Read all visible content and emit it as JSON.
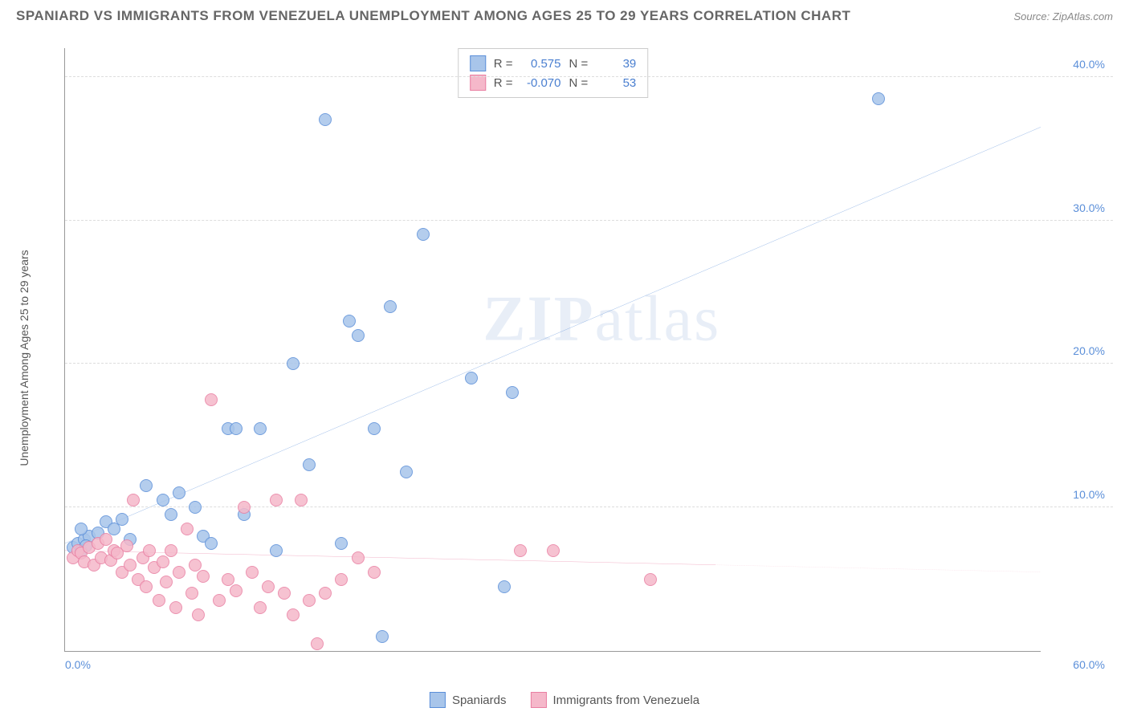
{
  "header": {
    "title": "SPANIARD VS IMMIGRANTS FROM VENEZUELA UNEMPLOYMENT AMONG AGES 25 TO 29 YEARS CORRELATION CHART",
    "source": "Source: ZipAtlas.com"
  },
  "chart": {
    "type": "scatter",
    "ylabel": "Unemployment Among Ages 25 to 29 years",
    "watermark": "ZIPatlas",
    "background_color": "#ffffff",
    "grid_color": "#dddddd",
    "axis_color": "#999999",
    "tick_label_color": "#5b8fd9",
    "xlim": [
      0,
      60
    ],
    "ylim": [
      0,
      42
    ],
    "xticks": [
      {
        "value": 0,
        "label": "0.0%"
      },
      {
        "value": 60,
        "label": "60.0%"
      }
    ],
    "yticks": [
      {
        "value": 10,
        "label": "10.0%"
      },
      {
        "value": 20,
        "label": "20.0%"
      },
      {
        "value": 30,
        "label": "30.0%"
      },
      {
        "value": 40,
        "label": "40.0%"
      }
    ],
    "marker_radius": 8,
    "marker_stroke_width": 1.5,
    "marker_fill_opacity": 0.35,
    "series": [
      {
        "name": "Spaniards",
        "color": "#5b8fd9",
        "fill_color": "#a8c5ea",
        "R": "0.575",
        "N": "39",
        "trend": {
          "x1": 0,
          "y1": 7.5,
          "x2": 60,
          "y2": 36.5,
          "width": 2,
          "dash_from_x": 60
        },
        "points": [
          [
            0.5,
            7.2
          ],
          [
            0.8,
            7.5
          ],
          [
            1.0,
            7.0
          ],
          [
            1.2,
            7.8
          ],
          [
            1.5,
            8.0
          ],
          [
            1.0,
            8.5
          ],
          [
            1.3,
            7.3
          ],
          [
            2.0,
            8.2
          ],
          [
            2.5,
            9.0
          ],
          [
            3.0,
            8.5
          ],
          [
            3.5,
            9.2
          ],
          [
            4.0,
            7.8
          ],
          [
            5.0,
            11.5
          ],
          [
            6.0,
            10.5
          ],
          [
            6.5,
            9.5
          ],
          [
            7.0,
            11.0
          ],
          [
            8.0,
            10.0
          ],
          [
            8.5,
            8.0
          ],
          [
            9.0,
            7.5
          ],
          [
            10.0,
            15.5
          ],
          [
            10.5,
            15.5
          ],
          [
            11.0,
            9.5
          ],
          [
            12.0,
            15.5
          ],
          [
            13.0,
            7.0
          ],
          [
            14.0,
            20.0
          ],
          [
            15.0,
            13.0
          ],
          [
            16.0,
            37.0
          ],
          [
            17.0,
            7.5
          ],
          [
            17.5,
            23.0
          ],
          [
            18.0,
            22.0
          ],
          [
            19.0,
            15.5
          ],
          [
            19.5,
            1.0
          ],
          [
            20.0,
            24.0
          ],
          [
            21.0,
            12.5
          ],
          [
            22.0,
            29.0
          ],
          [
            25.0,
            19.0
          ],
          [
            27.0,
            4.5
          ],
          [
            27.5,
            18.0
          ],
          [
            50.0,
            38.5
          ]
        ]
      },
      {
        "name": "Immigrants from Venezuela",
        "color": "#e97fa2",
        "fill_color": "#f5b8ca",
        "R": "-0.070",
        "N": "53",
        "trend": {
          "x1": 0,
          "y1": 7.0,
          "x2": 60,
          "y2": 5.5,
          "width": 2,
          "dash_from_x": 40
        },
        "points": [
          [
            0.5,
            6.5
          ],
          [
            0.8,
            7.0
          ],
          [
            1.0,
            6.8
          ],
          [
            1.2,
            6.2
          ],
          [
            1.5,
            7.2
          ],
          [
            1.8,
            6.0
          ],
          [
            2.0,
            7.5
          ],
          [
            2.2,
            6.5
          ],
          [
            2.5,
            7.8
          ],
          [
            2.8,
            6.3
          ],
          [
            3.0,
            7.0
          ],
          [
            3.2,
            6.8
          ],
          [
            3.5,
            5.5
          ],
          [
            3.8,
            7.3
          ],
          [
            4.0,
            6.0
          ],
          [
            4.2,
            10.5
          ],
          [
            4.5,
            5.0
          ],
          [
            4.8,
            6.5
          ],
          [
            5.0,
            4.5
          ],
          [
            5.2,
            7.0
          ],
          [
            5.5,
            5.8
          ],
          [
            5.8,
            3.5
          ],
          [
            6.0,
            6.2
          ],
          [
            6.2,
            4.8
          ],
          [
            6.5,
            7.0
          ],
          [
            6.8,
            3.0
          ],
          [
            7.0,
            5.5
          ],
          [
            7.5,
            8.5
          ],
          [
            7.8,
            4.0
          ],
          [
            8.0,
            6.0
          ],
          [
            8.2,
            2.5
          ],
          [
            8.5,
            5.2
          ],
          [
            9.0,
            17.5
          ],
          [
            9.5,
            3.5
          ],
          [
            10.0,
            5.0
          ],
          [
            10.5,
            4.2
          ],
          [
            11.0,
            10.0
          ],
          [
            11.5,
            5.5
          ],
          [
            12.0,
            3.0
          ],
          [
            12.5,
            4.5
          ],
          [
            13.0,
            10.5
          ],
          [
            13.5,
            4.0
          ],
          [
            14.0,
            2.5
          ],
          [
            14.5,
            10.5
          ],
          [
            15.0,
            3.5
          ],
          [
            15.5,
            0.5
          ],
          [
            16.0,
            4.0
          ],
          [
            17.0,
            5.0
          ],
          [
            18.0,
            6.5
          ],
          [
            19.0,
            5.5
          ],
          [
            28.0,
            7.0
          ],
          [
            30.0,
            7.0
          ],
          [
            36.0,
            5.0
          ]
        ]
      }
    ],
    "legend": {
      "swatch_size": 20,
      "labels": [
        "Spaniards",
        "Immigrants from Venezuela"
      ]
    },
    "stats_box": {
      "r_label": "R =",
      "n_label": "N ="
    }
  }
}
